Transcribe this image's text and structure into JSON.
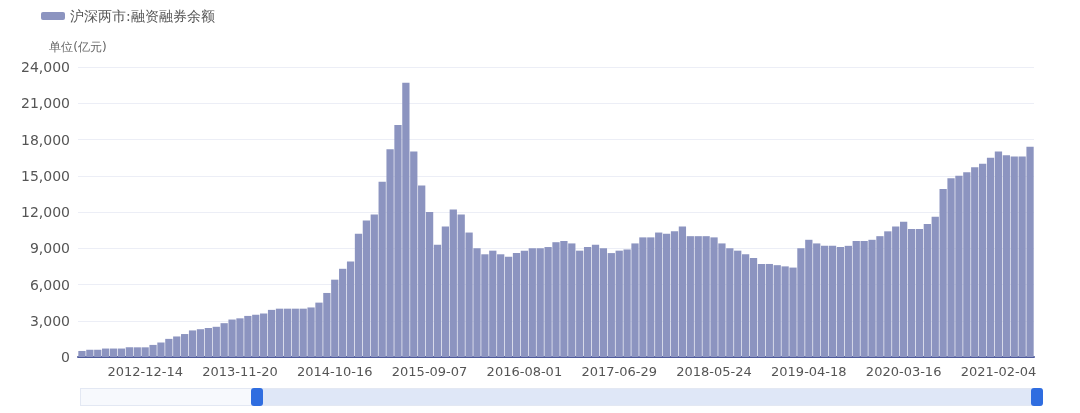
{
  "chart_data": {
    "type": "bar",
    "ylabel": "单位(亿元)",
    "categories": [
      null,
      null,
      null,
      null,
      null,
      null,
      null,
      null,
      "2012-12-14",
      null,
      null,
      null,
      null,
      null,
      null,
      null,
      null,
      null,
      null,
      null,
      "2013-11-20",
      null,
      null,
      null,
      null,
      null,
      null,
      null,
      null,
      null,
      null,
      null,
      "2014-10-16",
      null,
      null,
      null,
      null,
      null,
      null,
      null,
      null,
      null,
      null,
      null,
      "2015-09-07",
      null,
      null,
      null,
      null,
      null,
      null,
      null,
      null,
      null,
      null,
      null,
      "2016-08-01",
      null,
      null,
      null,
      null,
      null,
      null,
      null,
      null,
      null,
      null,
      null,
      "2017-06-29",
      null,
      null,
      null,
      null,
      null,
      null,
      null,
      null,
      null,
      null,
      null,
      "2018-05-24",
      null,
      null,
      null,
      null,
      null,
      null,
      null,
      null,
      null,
      null,
      null,
      "2019-04-18",
      null,
      null,
      null,
      null,
      null,
      null,
      null,
      null,
      null,
      null,
      null,
      "2020-03-16",
      null,
      null,
      null,
      null,
      null,
      null,
      null,
      null,
      null,
      null,
      null,
      "2021-02-04",
      null,
      null,
      null,
      null
    ],
    "series": [
      {
        "name": "沪深两市:融资融券余额",
        "color": "#8c94c0",
        "values": [
          500,
          600,
          600,
          700,
          700,
          700,
          800,
          800,
          800,
          1000,
          1200,
          1500,
          1700,
          1900,
          2200,
          2300,
          2400,
          2500,
          2800,
          3100,
          3200,
          3400,
          3500,
          3600,
          3900,
          4000,
          4000,
          4000,
          4000,
          4100,
          4500,
          5300,
          6400,
          7300,
          7900,
          10200,
          11300,
          11800,
          14500,
          17200,
          19200,
          22700,
          17000,
          14200,
          12000,
          9300,
          10800,
          12200,
          11800,
          10300,
          9000,
          8500,
          8800,
          8500,
          8300,
          8600,
          8800,
          9000,
          9000,
          9100,
          9500,
          9600,
          9400,
          8800,
          9100,
          9300,
          9000,
          8600,
          8800,
          8900,
          9400,
          9900,
          9900,
          10300,
          10200,
          10400,
          10800,
          10000,
          10000,
          10000,
          9900,
          9400,
          9000,
          8800,
          8500,
          8200,
          7700,
          7700,
          7600,
          7500,
          7400,
          9000,
          9700,
          9400,
          9200,
          9200,
          9100,
          9200,
          9600,
          9600,
          9700,
          10000,
          10400,
          10800,
          11200,
          10600,
          10600,
          11000,
          11600,
          13900,
          14800,
          15000,
          15300,
          15700,
          16000,
          16500,
          17000,
          16700,
          16600,
          16600,
          17400
        ]
      }
    ],
    "ylim": [
      0,
      24000
    ],
    "yticks": [
      {
        "value": 0,
        "label": "0"
      },
      {
        "value": 3000,
        "label": "3,000"
      },
      {
        "value": 6000,
        "label": "6,000"
      },
      {
        "value": 9000,
        "label": "9,000"
      },
      {
        "value": 12000,
        "label": "12,000"
      },
      {
        "value": 15000,
        "label": "15,000"
      },
      {
        "value": 18000,
        "label": "18,000"
      },
      {
        "value": 21000,
        "label": "21,000"
      },
      {
        "value": 24000,
        "label": "24,000"
      }
    ],
    "grid": "y",
    "legend": "top left"
  }
}
